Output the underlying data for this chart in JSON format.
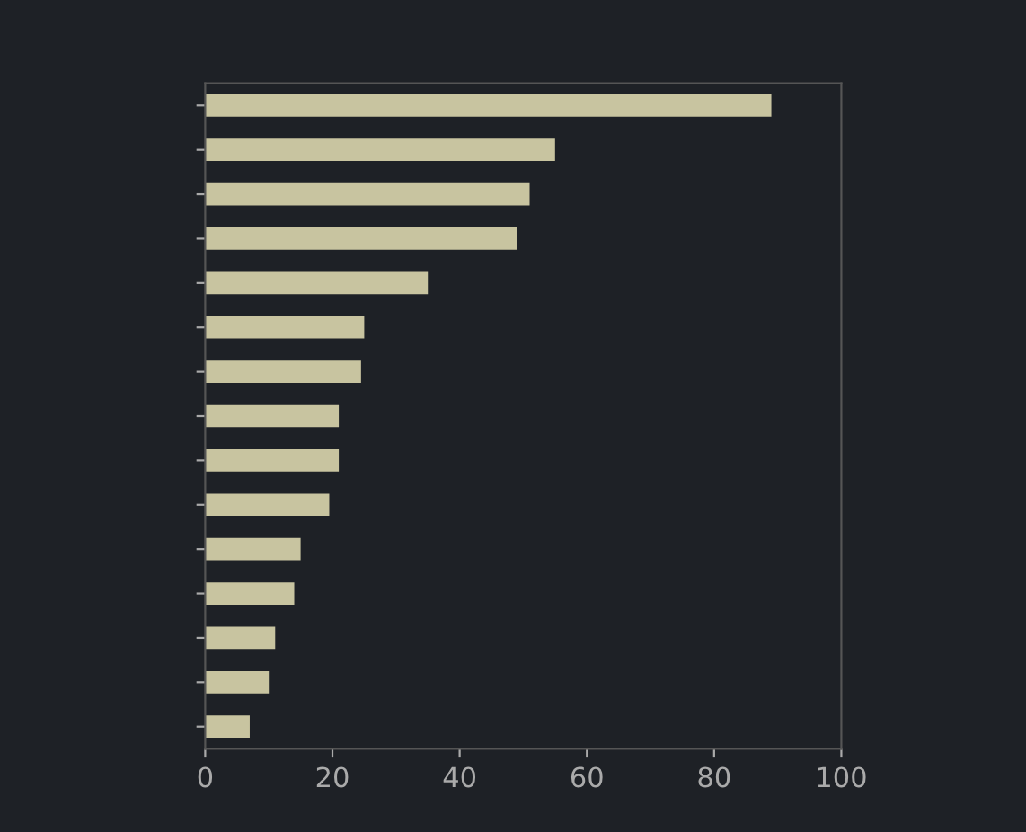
{
  "chart_data": {
    "type": "bar",
    "orientation": "horizontal",
    "categories": [
      null,
      null,
      null,
      null,
      null,
      null,
      null,
      null,
      null,
      null,
      null,
      null,
      null,
      null,
      null
    ],
    "values": [
      89,
      55,
      51,
      49,
      35,
      25,
      24.5,
      21,
      21,
      19.5,
      15,
      14,
      11,
      10,
      7
    ],
    "color": "#c8c4a0",
    "xlim": [
      0,
      100
    ],
    "xticks": [
      0,
      20,
      40,
      60,
      80,
      100
    ],
    "grid": false
  }
}
